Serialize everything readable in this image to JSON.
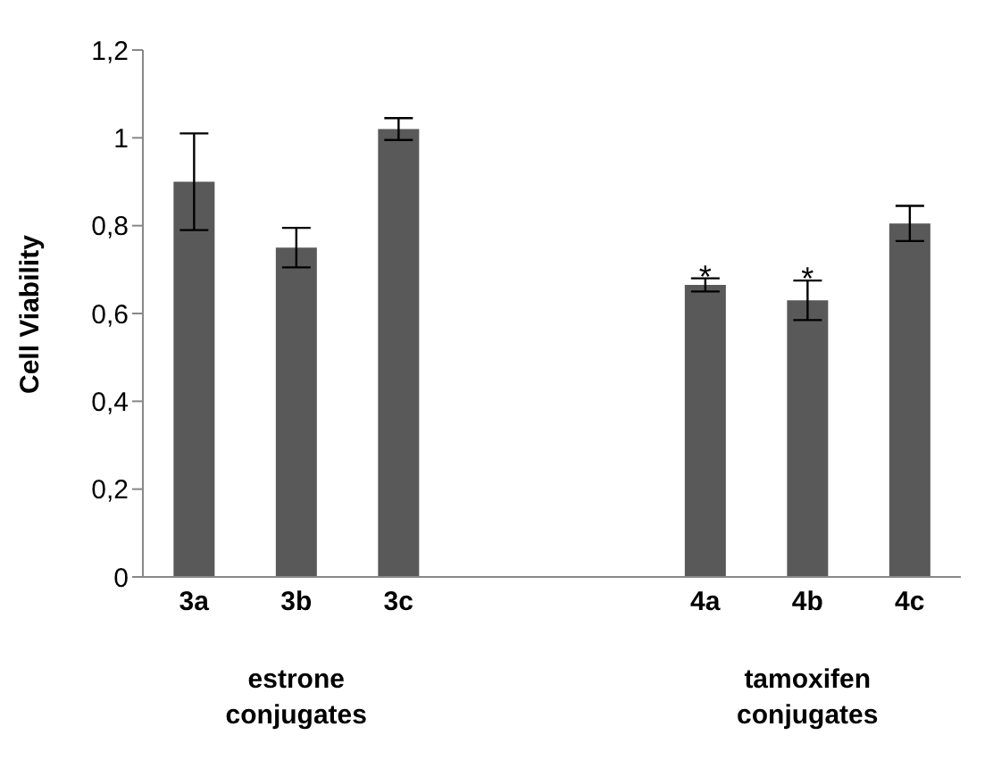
{
  "chart_data": {
    "type": "bar",
    "ylabel": "Cell Viability",
    "categories": [
      "3a",
      "3b",
      "3c",
      null,
      null,
      "4a",
      "4b",
      "4c"
    ],
    "values": [
      0.9,
      0.75,
      1.02,
      null,
      null,
      0.665,
      0.63,
      0.805
    ],
    "errors": [
      0.11,
      0.045,
      0.025,
      null,
      null,
      0.015,
      0.045,
      0.04
    ],
    "color": "#595959",
    "ylim": [
      0,
      1.2
    ],
    "yticks": [
      0,
      {
        "value": 0.2,
        "label": "0,2"
      },
      {
        "value": 0.4,
        "label": "0,4"
      },
      {
        "value": 0.6,
        "label": "0,6"
      },
      {
        "value": 0.8,
        "label": "0,8"
      },
      1,
      {
        "value": 1.2,
        "label": "1,2"
      }
    ],
    "grid": false,
    "annotations": [
      {
        "text": "*",
        "x": "4a"
      },
      {
        "text": "*",
        "x": "4b"
      },
      "estrone\nconjugates",
      "tamoxifen\nconjugates"
    ]
  }
}
